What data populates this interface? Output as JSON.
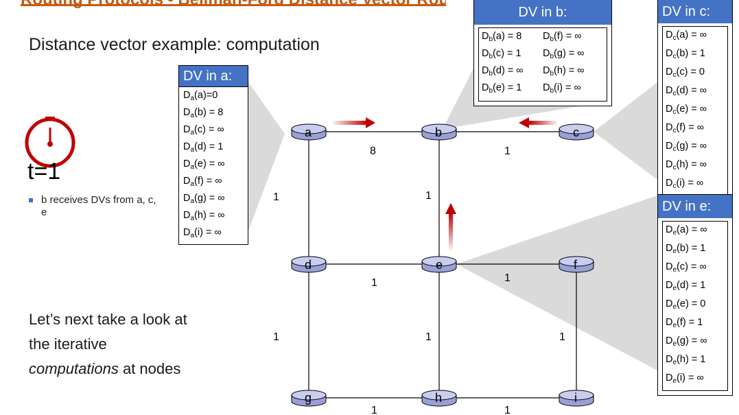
{
  "header": {
    "title": "Routing Protocols - Bellman-Ford Distance Vector Routing Algorithm"
  },
  "subtitle": "Distance vector example: computation",
  "time_label": "t=1",
  "bullet": "b receives DVs from a, c, e",
  "body_text": {
    "line1": "Let’s next take a look at",
    "line2": "the iterative",
    "line3_em": "computations",
    "line3_rest": " at nodes"
  },
  "icons": {
    "clock": "clock-icon"
  },
  "colors": {
    "accent_blue": "#4472c4",
    "clock_red": "#c00000",
    "arrow_red": "#c00000",
    "title_orange": "#c55a11",
    "node_fill": "#c9cdf0"
  },
  "nodes": [
    "a",
    "b",
    "c",
    "d",
    "e",
    "f",
    "g",
    "h",
    "i"
  ],
  "edges": {
    "ab": "8",
    "bc": "1",
    "ad": "1",
    "be": "1",
    "de": "1",
    "ef": "1",
    "dg": "1",
    "eh": "1",
    "fi": "1",
    "gh": "1",
    "hi": "1"
  },
  "dv_a": {
    "header": "DV in a:",
    "rows": [
      {
        "pre": "D",
        "sub": "a",
        "post": "(a)=0"
      },
      {
        "pre": "D",
        "sub": "a",
        "post": "(b) = 8"
      },
      {
        "pre": "D",
        "sub": "a",
        "post": "(c) = ∞"
      },
      {
        "pre": "D",
        "sub": "a",
        "post": "(d) = 1"
      },
      {
        "pre": "D",
        "sub": "a",
        "post": "(e) = ∞"
      },
      {
        "pre": "D",
        "sub": "a",
        "post": "(f) = ∞"
      },
      {
        "pre": "D",
        "sub": "a",
        "post": "(g) = ∞"
      },
      {
        "pre": "D",
        "sub": "a",
        "post": "(h) = ∞"
      },
      {
        "pre": "D",
        "sub": "a",
        "post": "(i) = ∞"
      }
    ]
  },
  "dv_b": {
    "header": "DV in b:",
    "rows": [
      {
        "pre": "D",
        "sub": "b",
        "post": "(a) = 8"
      },
      {
        "pre": "D",
        "sub": "b",
        "post": "(f) = ∞"
      },
      {
        "pre": "D",
        "sub": "b",
        "post": "(c) = 1"
      },
      {
        "pre": "D",
        "sub": "b",
        "post": "(g) = ∞"
      },
      {
        "pre": "D",
        "sub": "b",
        "post": "(d) = ∞"
      },
      {
        "pre": "D",
        "sub": "b",
        "post": "(h) = ∞"
      },
      {
        "pre": "D",
        "sub": "b",
        "post": "(e) = 1"
      },
      {
        "pre": "D",
        "sub": "b",
        "post": "(i) = ∞"
      }
    ]
  },
  "dv_c": {
    "header": "DV in c:",
    "rows": [
      {
        "pre": "D",
        "sub": "c",
        "post": "(a) = ∞"
      },
      {
        "pre": "D",
        "sub": "c",
        "post": "(b) = 1"
      },
      {
        "pre": "D",
        "sub": "c",
        "post": "(c) = 0"
      },
      {
        "pre": "D",
        "sub": "c",
        "post": "(d) = ∞"
      },
      {
        "pre": "D",
        "sub": "c",
        "post": "(e) = ∞"
      },
      {
        "pre": "D",
        "sub": "c",
        "post": "(f) = ∞"
      },
      {
        "pre": "D",
        "sub": "c",
        "post": "(g) = ∞"
      },
      {
        "pre": "D",
        "sub": "c",
        "post": "(h) = ∞"
      },
      {
        "pre": "D",
        "sub": "c",
        "post": "(i) = ∞"
      }
    ]
  },
  "dv_e": {
    "header": "DV in e:",
    "rows": [
      {
        "pre": "D",
        "sub": "e",
        "post": "(a) = ∞"
      },
      {
        "pre": "D",
        "sub": "e",
        "post": "(b) = 1"
      },
      {
        "pre": "D",
        "sub": "e",
        "post": "(c) = ∞"
      },
      {
        "pre": "D",
        "sub": "e",
        "post": "(d) = 1"
      },
      {
        "pre": "D",
        "sub": "e",
        "post": "(e) = 0"
      },
      {
        "pre": "D",
        "sub": "e",
        "post": "(f) = 1"
      },
      {
        "pre": "D",
        "sub": "e",
        "post": "(g) = ∞"
      },
      {
        "pre": "D",
        "sub": "e",
        "post": "(h) = 1"
      },
      {
        "pre": "D",
        "sub": "e",
        "post": "(i) = ∞"
      }
    ]
  }
}
